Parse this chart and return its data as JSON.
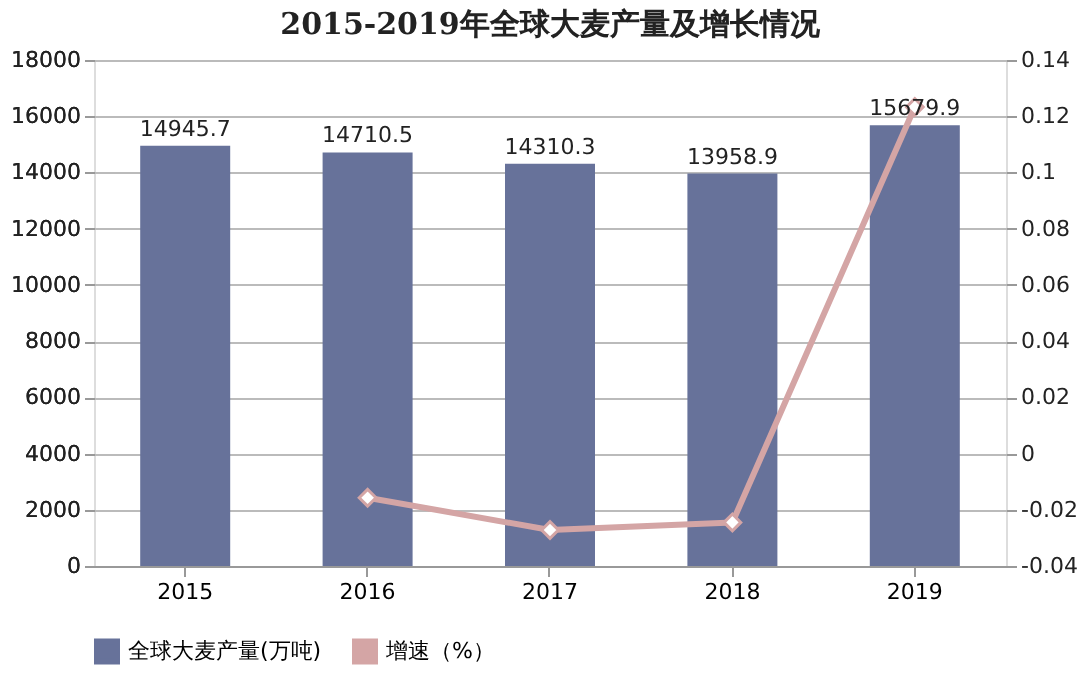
{
  "chart_data": {
    "type": "bar",
    "title": "2015-2019年全球大麦产量及增长情况",
    "categories": [
      "2015",
      "2016",
      "2017",
      "2018",
      "2019"
    ],
    "series": [
      {
        "name": "全球大麦产量(万吨)",
        "color": "#67729a",
        "values": [
          14945.7,
          14710.5,
          14310.3,
          13958.9,
          15679.9
        ],
        "data_labels": true
      },
      {
        "name": "增速（%）",
        "type": "line",
        "axis": "y2",
        "color": "#d4a5a5",
        "marker": "diamond",
        "values": [
          null,
          -0.0157,
          -0.0272,
          -0.0245,
          0.1233
        ]
      }
    ],
    "ylim": [
      0,
      18000
    ],
    "yticks": [
      0,
      2000,
      4000,
      6000,
      8000,
      10000,
      12000,
      14000,
      16000,
      18000
    ],
    "y2lim": [
      -0.04,
      0.14
    ],
    "y2ticks": [
      -0.04,
      -0.02,
      0,
      0.02,
      0.04,
      0.06,
      0.08,
      0.1,
      0.12,
      0.14
    ],
    "grid": "y",
    "legend": "bottom"
  }
}
